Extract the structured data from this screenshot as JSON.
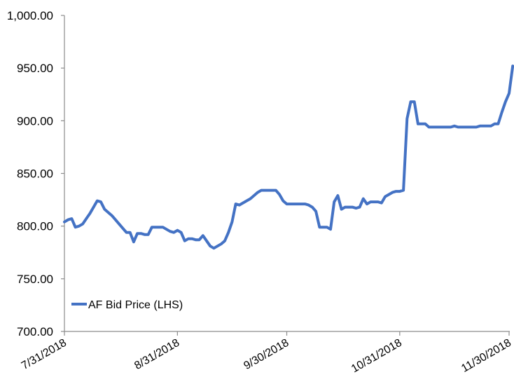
{
  "chart_data": {
    "type": "line",
    "x_axis": {
      "tick_labels": [
        "7/31/2018",
        "8/31/2018",
        "9/30/2018",
        "10/31/2018",
        "11/30/2018"
      ],
      "range": [
        "2018-07-31",
        "2018-11-30"
      ]
    },
    "y_axis": {
      "ylim": [
        700,
        1000
      ],
      "tick_values": [
        700,
        750,
        800,
        850,
        900,
        950,
        1000
      ],
      "tick_labels": [
        "700.00",
        "750.00",
        "800.00",
        "850.00",
        "900.00",
        "950.00",
        "1,000.00"
      ]
    },
    "grid": false,
    "legend": {
      "position": "inside-lower-left"
    },
    "series": [
      {
        "name": "AF Bid Price (LHS)",
        "color": "#4472C4",
        "points": [
          [
            "2018-07-31",
            804
          ],
          [
            "2018-08-01",
            806
          ],
          [
            "2018-08-02",
            807
          ],
          [
            "2018-08-03",
            799
          ],
          [
            "2018-08-04",
            800
          ],
          [
            "2018-08-05",
            802
          ],
          [
            "2018-08-06",
            807
          ],
          [
            "2018-08-07",
            812
          ],
          [
            "2018-08-08",
            818
          ],
          [
            "2018-08-09",
            824
          ],
          [
            "2018-08-10",
            823
          ],
          [
            "2018-08-11",
            816
          ],
          [
            "2018-08-12",
            813
          ],
          [
            "2018-08-13",
            810
          ],
          [
            "2018-08-14",
            806
          ],
          [
            "2018-08-15",
            802
          ],
          [
            "2018-08-16",
            798
          ],
          [
            "2018-08-17",
            794
          ],
          [
            "2018-08-18",
            794
          ],
          [
            "2018-08-19",
            785
          ],
          [
            "2018-08-20",
            793
          ],
          [
            "2018-08-21",
            793
          ],
          [
            "2018-08-22",
            792
          ],
          [
            "2018-08-23",
            792
          ],
          [
            "2018-08-24",
            799
          ],
          [
            "2018-08-25",
            799
          ],
          [
            "2018-08-26",
            799
          ],
          [
            "2018-08-27",
            799
          ],
          [
            "2018-08-28",
            797
          ],
          [
            "2018-08-29",
            795
          ],
          [
            "2018-08-30",
            794
          ],
          [
            "2018-08-31",
            796
          ],
          [
            "2018-09-01",
            794
          ],
          [
            "2018-09-02",
            786
          ],
          [
            "2018-09-03",
            788
          ],
          [
            "2018-09-04",
            788
          ],
          [
            "2018-09-05",
            787
          ],
          [
            "2018-09-06",
            787
          ],
          [
            "2018-09-07",
            791
          ],
          [
            "2018-09-08",
            786
          ],
          [
            "2018-09-09",
            781
          ],
          [
            "2018-09-10",
            779
          ],
          [
            "2018-09-11",
            781
          ],
          [
            "2018-09-12",
            783
          ],
          [
            "2018-09-13",
            786
          ],
          [
            "2018-09-14",
            794
          ],
          [
            "2018-09-15",
            804
          ],
          [
            "2018-09-16",
            821
          ],
          [
            "2018-09-17",
            820
          ],
          [
            "2018-09-18",
            822
          ],
          [
            "2018-09-19",
            824
          ],
          [
            "2018-09-20",
            826
          ],
          [
            "2018-09-21",
            829
          ],
          [
            "2018-09-22",
            832
          ],
          [
            "2018-09-23",
            834
          ],
          [
            "2018-09-24",
            834
          ],
          [
            "2018-09-25",
            834
          ],
          [
            "2018-09-26",
            834
          ],
          [
            "2018-09-27",
            834
          ],
          [
            "2018-09-28",
            830
          ],
          [
            "2018-09-29",
            824
          ],
          [
            "2018-09-30",
            821
          ],
          [
            "2018-10-01",
            821
          ],
          [
            "2018-10-02",
            821
          ],
          [
            "2018-10-03",
            821
          ],
          [
            "2018-10-04",
            821
          ],
          [
            "2018-10-05",
            821
          ],
          [
            "2018-10-06",
            820
          ],
          [
            "2018-10-07",
            818
          ],
          [
            "2018-10-08",
            814
          ],
          [
            "2018-10-09",
            799
          ],
          [
            "2018-10-10",
            799
          ],
          [
            "2018-10-11",
            799
          ],
          [
            "2018-10-12",
            797
          ],
          [
            "2018-10-13",
            823
          ],
          [
            "2018-10-14",
            829
          ],
          [
            "2018-10-15",
            816
          ],
          [
            "2018-10-16",
            818
          ],
          [
            "2018-10-17",
            818
          ],
          [
            "2018-10-18",
            818
          ],
          [
            "2018-10-19",
            817
          ],
          [
            "2018-10-20",
            818
          ],
          [
            "2018-10-21",
            826
          ],
          [
            "2018-10-22",
            821
          ],
          [
            "2018-10-23",
            823
          ],
          [
            "2018-10-24",
            823
          ],
          [
            "2018-10-25",
            823
          ],
          [
            "2018-10-26",
            822
          ],
          [
            "2018-10-27",
            828
          ],
          [
            "2018-10-28",
            830
          ],
          [
            "2018-10-29",
            832
          ],
          [
            "2018-10-30",
            833
          ],
          [
            "2018-10-31",
            833
          ],
          [
            "2018-11-01",
            834
          ],
          [
            "2018-11-02",
            902
          ],
          [
            "2018-11-03",
            918
          ],
          [
            "2018-11-04",
            918
          ],
          [
            "2018-11-05",
            897
          ],
          [
            "2018-11-06",
            897
          ],
          [
            "2018-11-07",
            897
          ],
          [
            "2018-11-08",
            894
          ],
          [
            "2018-11-09",
            894
          ],
          [
            "2018-11-10",
            894
          ],
          [
            "2018-11-11",
            894
          ],
          [
            "2018-11-12",
            894
          ],
          [
            "2018-11-13",
            894
          ],
          [
            "2018-11-14",
            894
          ],
          [
            "2018-11-15",
            895
          ],
          [
            "2018-11-16",
            894
          ],
          [
            "2018-11-17",
            894
          ],
          [
            "2018-11-18",
            894
          ],
          [
            "2018-11-19",
            894
          ],
          [
            "2018-11-20",
            894
          ],
          [
            "2018-11-21",
            894
          ],
          [
            "2018-11-22",
            895
          ],
          [
            "2018-11-23",
            895
          ],
          [
            "2018-11-24",
            895
          ],
          [
            "2018-11-25",
            895
          ],
          [
            "2018-11-26",
            897
          ],
          [
            "2018-11-27",
            897
          ],
          [
            "2018-11-28",
            908
          ],
          [
            "2018-11-29",
            918
          ],
          [
            "2018-11-30",
            926
          ],
          [
            "2018-12-01",
            952
          ]
        ]
      }
    ]
  }
}
